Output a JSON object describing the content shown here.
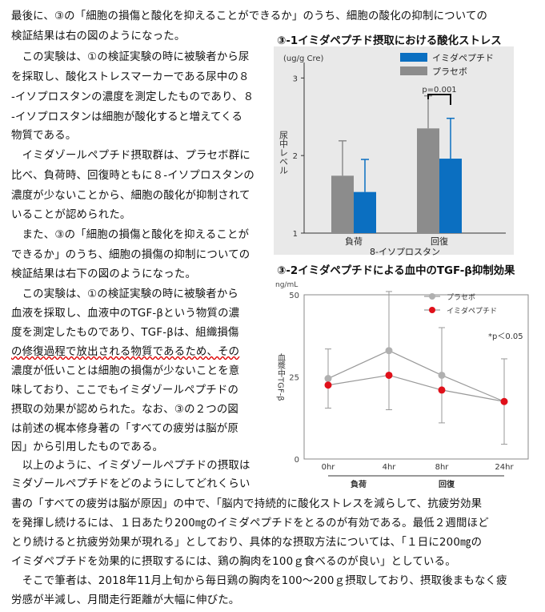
{
  "paragraph_lines": [
    "最後に、③の「細胞の損傷と酸化を抑えることができるか」のうち、細胞の酸化の抑制についての",
    "検証結果は右の図のようになった。",
    "　この実験は、①の検証実験の時に被験者から尿",
    "を採取し、酸化ストレスマーカーである尿中の８",
    "-イソプロスタンの濃度を測定したものであり、８",
    "-イソプロスタンは細胞が酸化すると増えてくる",
    "物質である。",
    "　イミダゾールペプチド摂取群は、プラセボ群に",
    "比べ、負荷時、回復時ともに８-イソプロスタンの",
    "濃度が少ないことから、細胞の酸化が抑制されて",
    "いることが認められた。",
    "　また、③の「細胞の損傷と酸化を抑えることが",
    "できるか」のうち、細胞の損傷の抑制についての",
    "検証結果は右下の図のようになった。",
    "　この実験は、①の検証実験の時に被験者から",
    "血液を採取し、血液中のTGF-βという物質の濃",
    "度を測定したものであり、TGF-βは、組織損傷",
    "の修復過程で放出される物質であるため、その",
    "濃度が低いことは細胞の損傷が少ないことを意",
    "味しており、ここでもイミダゾールペプチドの",
    "摂取の効果が認められた。なお、③の２つの図",
    "は前述の梶本修身著の「すべての疲労は脳が原",
    "因」から引用したものである。",
    "　以上のように、イミダゾールペプチドの摂取は",
    "ミダゾールペプチドをどのようにしてどれくらい",
    "書の「すべての疲労は脳が原因」の中で、「脳内で持続的に酸化ストレスを減らして、抗疲労効果",
    "を発揮し続けるには、１日あたり200㎎のイミダペプチドをとるのが有効である。最低２週間ほど",
    "とり続けると抗疲労効果が現れる」としており、具体的な摂取方法については、「１日に200㎎の",
    "イミダペプチドを効果的に摂取するには、鶏の胸肉を100ｇ食べるのが良い」としている。",
    "　そこで筆者は、2018年11月上旬から毎日鶏の胸肉を100～200ｇ摂取しており、摂取後まもなく疲",
    "労感が半減し、月間走行距離が大幅に伸びた。"
  ],
  "figure1": {
    "caption": "③-1イミダペプチド摂取における酸化ストレス",
    "colors": {
      "imida": "#0b6fc1",
      "placebo": "#8c8c8c",
      "panel": "#e9e9e9"
    },
    "chart_data": {
      "type": "bar",
      "unit_label": "(ug/g Cre)",
      "ylabel": "尿中レベル",
      "xlabel": "8-イソプロスタン",
      "categories": [
        "負荷",
        "回復"
      ],
      "ylim": [
        1,
        3.2
      ],
      "yticks": [
        "3",
        "2",
        "1"
      ],
      "series": [
        {
          "name": "イミダペプチド",
          "values": [
            1.53,
            1.96
          ],
          "errors": [
            0.42,
            0.52
          ]
        },
        {
          "name": "プラセボ",
          "values": [
            1.74,
            2.35
          ],
          "errors": [
            0.45,
            0.42
          ]
        }
      ],
      "annotation": "p=0.001"
    }
  },
  "figure2": {
    "caption": "③-2イミダペプチドによる血中のTGF-β抑制効果",
    "colors": {
      "placebo": "#b0b0b0",
      "imida": "#e0101a",
      "line": "#999999"
    },
    "chart_data": {
      "type": "line",
      "unit_label": "ng/mL",
      "ylabel": "血漿中TGF-β",
      "x": [
        "0hr",
        "4hr",
        "8hr",
        "24hr"
      ],
      "yticks": [
        "50",
        "25",
        "0"
      ],
      "ylim": [
        0,
        50
      ],
      "series": [
        {
          "name": "プラセボ",
          "values": [
            24.5,
            33,
            25.5,
            17.5
          ],
          "errors": [
            9,
            18,
            14.5,
            13
          ]
        },
        {
          "name": "イミダペプチド",
          "values": [
            22.5,
            25.5,
            21,
            17.5
          ],
          "errors": [
            0,
            0,
            0,
            0
          ]
        }
      ],
      "annotation": "*p＜0.05",
      "phase_labels": [
        "負荷",
        "回復"
      ]
    }
  }
}
